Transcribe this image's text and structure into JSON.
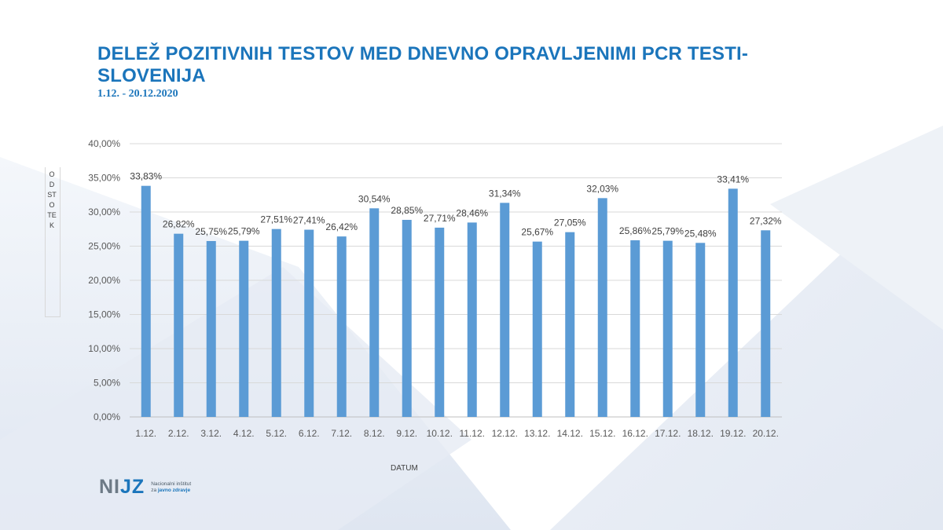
{
  "header": {
    "title": "DELEŽ POZITIVNIH TESTOV MED DNEVNO OPRAVLJENIMI PCR TESTI- SLOVENIJA",
    "subtitle": "1.12. - 20.12.2020"
  },
  "logo": {
    "mark_left": "NI",
    "mark_right": "JZ",
    "line1": "Nacionalni inštitut",
    "line2_prefix": "za",
    "line2_bold": "javno zdravje"
  },
  "colors": {
    "bar": "#5b9bd5",
    "title": "#1b75bb",
    "grid": "#d9d9d9",
    "text": "#404040"
  },
  "chart_data": {
    "type": "bar",
    "title": "DELEŽ POZITIVNIH TESTOV MED DNEVNO OPRAVLJENIMI PCR TESTI- SLOVENIJA",
    "xlabel": "DATUM",
    "ylabel": "ODSTOTEK",
    "ylim": [
      0,
      40
    ],
    "ytick_step": 5,
    "ytick_labels": [
      "0,00%",
      "5,00%",
      "10,00%",
      "15,00%",
      "20,00%",
      "25,00%",
      "30,00%",
      "35,00%",
      "40,00%"
    ],
    "grid": true,
    "legend": "none",
    "categories": [
      "1.12.",
      "2.12.",
      "3.12.",
      "4.12.",
      "5.12.",
      "6.12.",
      "7.12.",
      "8.12.",
      "9.12.",
      "10.12.",
      "11.12.",
      "12.12.",
      "13.12.",
      "14.12.",
      "15.12.",
      "16.12.",
      "17.12.",
      "18.12.",
      "19.12.",
      "20.12."
    ],
    "values": [
      33.83,
      26.82,
      25.75,
      25.79,
      27.51,
      27.41,
      26.42,
      30.54,
      28.85,
      27.71,
      28.46,
      31.34,
      25.67,
      27.05,
      32.03,
      25.86,
      25.79,
      25.48,
      33.41,
      27.32
    ],
    "data_labels": [
      "33,83%",
      "26,82%",
      "25,75%",
      "25,79%",
      "27,51%",
      "27,41%",
      "26,42%",
      "30,54%",
      "28,85%",
      "27,71%",
      "28,46%",
      "31,34%",
      "25,67%",
      "27,05%",
      "32,03%",
      "25,86%",
      "25,79%",
      "25,48%",
      "33,41%",
      "27,32%"
    ]
  }
}
